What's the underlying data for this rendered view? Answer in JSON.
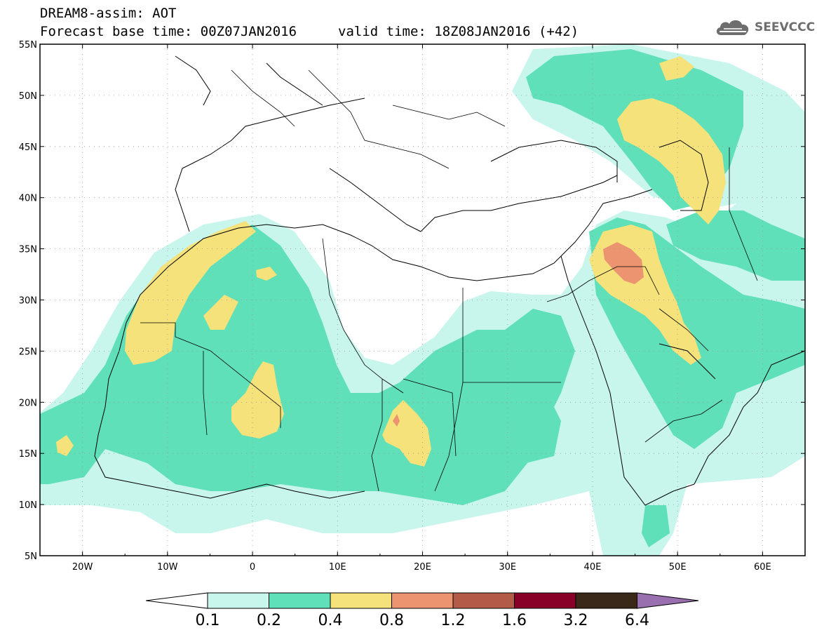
{
  "header": {
    "title_line1": "DREAM8-assim: AOT",
    "title_line2": "Forecast base time: 00Z07JAN2016",
    "valid_time": "valid time: 18Z08JAN2016 (+42)",
    "logo_text": "SEEVCCC",
    "logo_icon": "cloud-icon"
  },
  "map": {
    "projection": "lat-lon",
    "lon_range": [
      -25,
      65
    ],
    "lat_range": [
      5,
      55
    ],
    "lat_ticks": [
      "5N",
      "10N",
      "15N",
      "20N",
      "25N",
      "30N",
      "35N",
      "40N",
      "45N",
      "50N",
      "55N"
    ],
    "lon_ticks": [
      "20W",
      "10W",
      "0",
      "10E",
      "20E",
      "30E",
      "40E",
      "50E",
      "60E"
    ],
    "grid": "dotted"
  },
  "colorbar": {
    "labels": [
      "0.1",
      "0.2",
      "0.4",
      "0.8",
      "1.2",
      "1.6",
      "3.2",
      "6.4"
    ],
    "colors": [
      "#ffffff",
      "#c8f5ec",
      "#5fe0b8",
      "#f5e27a",
      "#ec9470",
      "#b45a48",
      "#880028",
      "#3a2818",
      "#9a6fb0"
    ]
  },
  "chart_data": {
    "type": "heatmap",
    "title": "DREAM8-assim: AOT",
    "levels": [
      0.1,
      0.2,
      0.4,
      0.8,
      1.2,
      1.6,
      3.2,
      6.4
    ],
    "xlim": [
      -25,
      65
    ],
    "ylim": [
      5,
      55
    ]
  }
}
